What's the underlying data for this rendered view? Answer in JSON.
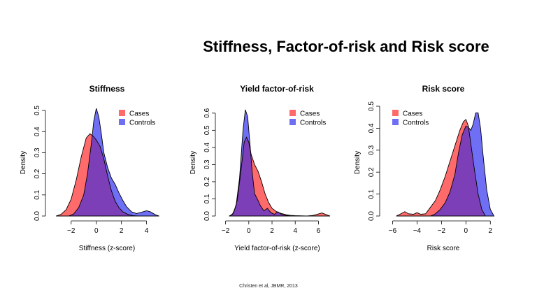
{
  "slide_title": "Stiffness, Factor-of-risk and Risk score",
  "citation": "Christen et al, JBMR,  2013",
  "colors": {
    "cases": "#ff6b6b",
    "controls": "#6f6ff5",
    "overlap": "#7d3fb8"
  },
  "chart_data": [
    {
      "type": "area",
      "title": "Stiffness",
      "xlabel": "Stiffness (z-score)",
      "ylabel": "Density",
      "xlim": [
        -3.6,
        5.3
      ],
      "ylim": [
        0,
        0.52
      ],
      "xticks": [
        -2,
        0,
        2,
        4
      ],
      "yticks": [
        0.0,
        0.1,
        0.2,
        0.3,
        0.4,
        0.5
      ],
      "ytick_labels": [
        "0.0",
        "0.1",
        "0.2",
        "0.3",
        "0.4",
        "0.5"
      ],
      "legend_position": "top-right",
      "series": [
        {
          "name": "Cases",
          "color": "#ff6b6b",
          "x": [
            -3.2,
            -2.8,
            -2.4,
            -2.0,
            -1.6,
            -1.2,
            -0.8,
            -0.5,
            -0.2,
            0.0,
            0.3,
            0.6,
            0.9,
            1.2,
            1.5,
            1.8,
            2.1,
            2.5,
            2.9,
            3.3
          ],
          "y": [
            0.0,
            0.008,
            0.03,
            0.08,
            0.17,
            0.28,
            0.37,
            0.39,
            0.375,
            0.36,
            0.33,
            0.27,
            0.19,
            0.12,
            0.07,
            0.04,
            0.02,
            0.008,
            0.002,
            0.0
          ]
        },
        {
          "name": "Controls",
          "color": "#6f6ff5",
          "x": [
            -2.2,
            -1.8,
            -1.4,
            -1.0,
            -0.7,
            -0.4,
            -0.2,
            0.0,
            0.2,
            0.4,
            0.6,
            0.9,
            1.2,
            1.5,
            1.8,
            2.1,
            2.4,
            2.8,
            3.2,
            3.6,
            4.0,
            4.3,
            4.7,
            5.0
          ],
          "y": [
            0.0,
            0.01,
            0.04,
            0.1,
            0.2,
            0.34,
            0.45,
            0.51,
            0.47,
            0.39,
            0.3,
            0.23,
            0.18,
            0.15,
            0.11,
            0.075,
            0.045,
            0.02,
            0.012,
            0.018,
            0.025,
            0.02,
            0.006,
            0.0
          ]
        }
      ]
    },
    {
      "type": "area",
      "title": "Yield factor-of-risk",
      "xlabel": "Yield factor-of-risk (z-score)",
      "ylabel": "Density",
      "xlim": [
        -2.4,
        7.3
      ],
      "ylim": [
        0,
        0.64
      ],
      "xticks": [
        -2,
        0,
        2,
        4,
        6
      ],
      "yticks": [
        0.0,
        0.1,
        0.2,
        0.3,
        0.4,
        0.5,
        0.6
      ],
      "ytick_labels": [
        "0.0",
        "0.1",
        "0.2",
        "0.3",
        "0.4",
        "0.5",
        "0.6"
      ],
      "legend_position": "top-right",
      "series": [
        {
          "name": "Cases",
          "color": "#ff6b6b",
          "x": [
            -1.6,
            -1.3,
            -1.0,
            -0.7,
            -0.4,
            -0.2,
            0.0,
            0.2,
            0.5,
            0.8,
            1.1,
            1.4,
            1.7,
            2.0,
            2.4,
            2.8,
            3.2,
            3.6,
            4.0,
            4.5,
            5.0,
            5.5,
            6.0,
            6.3,
            6.6,
            7.0
          ],
          "y": [
            0.0,
            0.02,
            0.09,
            0.25,
            0.43,
            0.46,
            0.43,
            0.36,
            0.3,
            0.26,
            0.2,
            0.13,
            0.08,
            0.045,
            0.025,
            0.015,
            0.008,
            0.004,
            0.002,
            0.001,
            0.0,
            0.003,
            0.012,
            0.018,
            0.01,
            0.0
          ]
        },
        {
          "name": "Controls",
          "color": "#6f6ff5",
          "x": [
            -1.7,
            -1.4,
            -1.1,
            -0.8,
            -0.5,
            -0.3,
            -0.1,
            0.1,
            0.3,
            0.5,
            0.8,
            1.0,
            1.3,
            1.6,
            1.9,
            2.2,
            2.5,
            2.8,
            3.2,
            3.7
          ],
          "y": [
            0.0,
            0.01,
            0.06,
            0.22,
            0.5,
            0.62,
            0.58,
            0.42,
            0.25,
            0.13,
            0.09,
            0.06,
            0.03,
            0.045,
            0.02,
            0.01,
            0.025,
            0.01,
            0.003,
            0.0
          ]
        }
      ]
    },
    {
      "type": "area",
      "title": "Risk score",
      "xlabel": "Risk score",
      "ylabel": "Density",
      "xlim": [
        -6.6,
        2.9
      ],
      "ylim": [
        0,
        0.5
      ],
      "xticks": [
        -6,
        -4,
        -2,
        0,
        2
      ],
      "yticks": [
        0.0,
        0.1,
        0.2,
        0.3,
        0.4,
        0.5
      ],
      "ytick_labels": [
        "0.0",
        "0.1",
        "0.2",
        "0.3",
        "0.4",
        "0.5"
      ],
      "legend_position": "top-left",
      "series": [
        {
          "name": "Cases",
          "color": "#ff6b6b",
          "x": [
            -5.7,
            -5.4,
            -5.0,
            -4.7,
            -4.3,
            -4.0,
            -3.7,
            -3.3,
            -2.9,
            -2.5,
            -2.1,
            -1.7,
            -1.3,
            -0.9,
            -0.5,
            -0.2,
            0.0,
            0.2,
            0.4,
            0.7,
            1.0,
            1.3,
            1.6
          ],
          "y": [
            0.0,
            0.008,
            0.02,
            0.01,
            0.008,
            0.015,
            0.008,
            0.01,
            0.04,
            0.07,
            0.12,
            0.18,
            0.25,
            0.32,
            0.39,
            0.43,
            0.44,
            0.41,
            0.33,
            0.21,
            0.1,
            0.03,
            0.0
          ]
        },
        {
          "name": "Controls",
          "color": "#6f6ff5",
          "x": [
            -2.9,
            -2.5,
            -2.1,
            -1.7,
            -1.3,
            -0.9,
            -0.6,
            -0.3,
            0.0,
            0.2,
            0.4,
            0.6,
            0.8,
            1.0,
            1.2,
            1.4,
            1.7,
            2.0,
            2.3
          ],
          "y": [
            0.0,
            0.01,
            0.03,
            0.06,
            0.11,
            0.19,
            0.29,
            0.37,
            0.41,
            0.405,
            0.39,
            0.42,
            0.47,
            0.47,
            0.4,
            0.28,
            0.12,
            0.03,
            0.0
          ]
        }
      ]
    }
  ]
}
